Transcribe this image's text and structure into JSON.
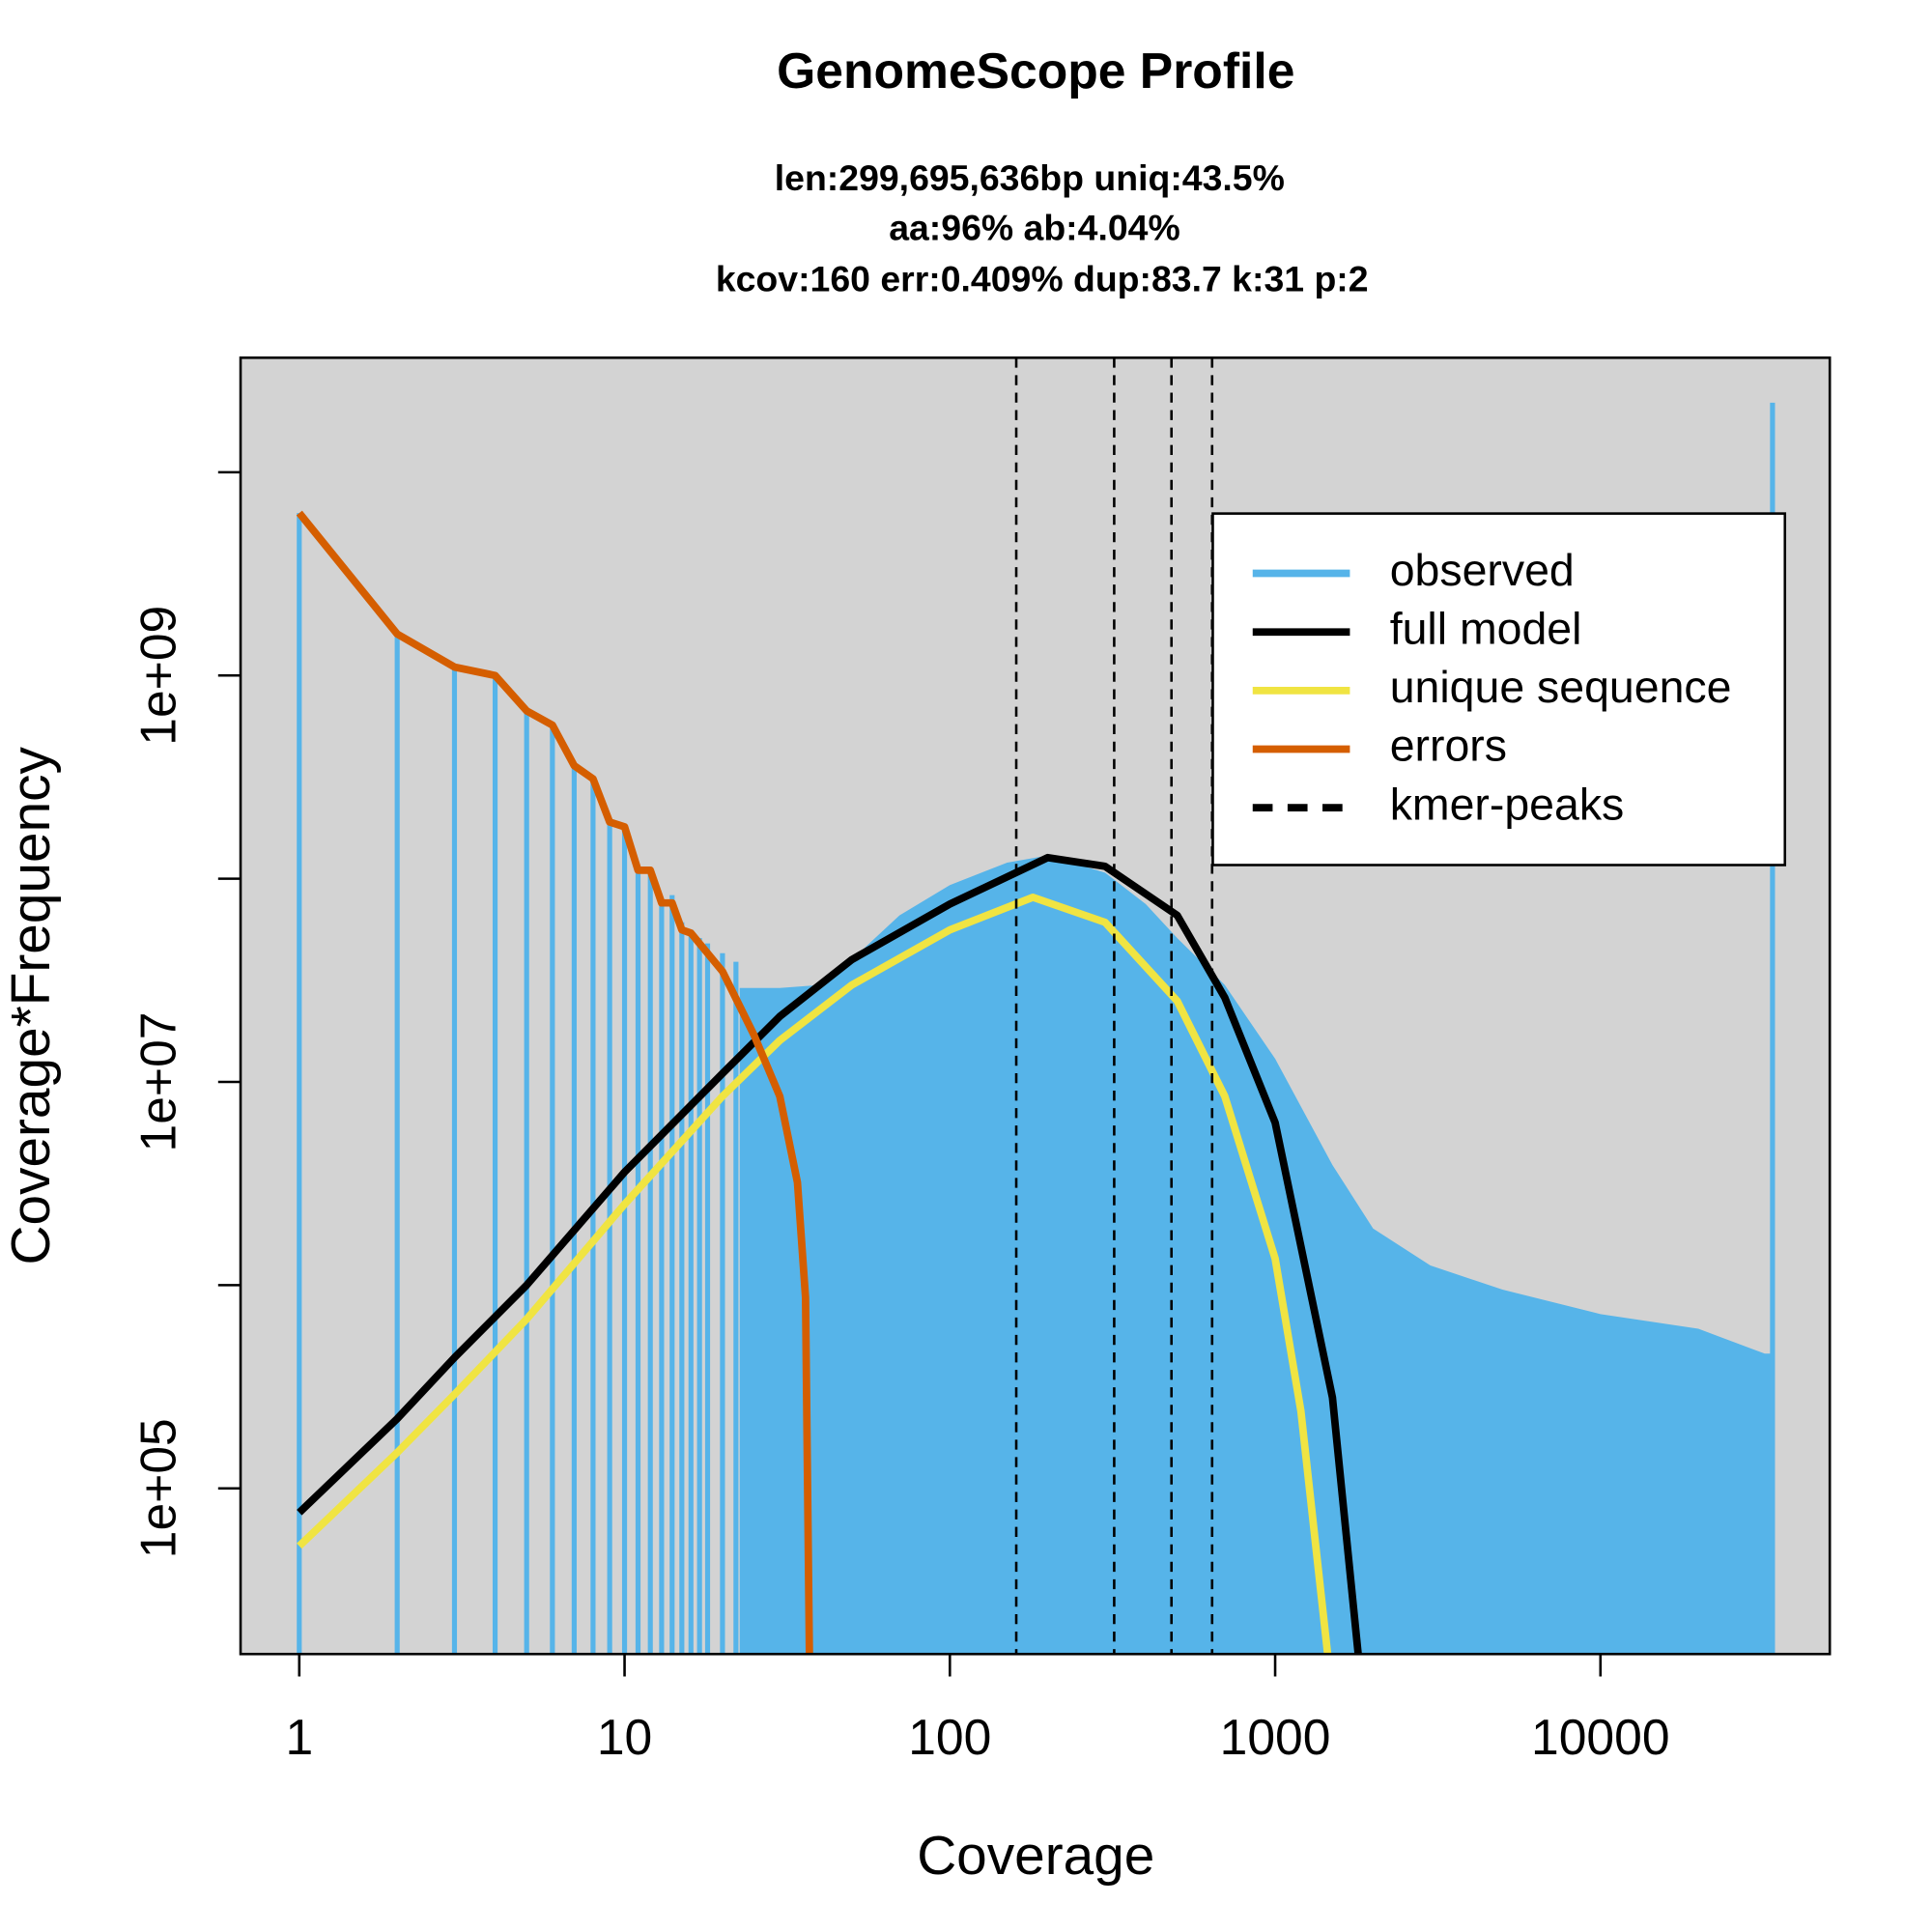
{
  "chart_data": {
    "type": "genomescope",
    "title": "GenomeScope Profile",
    "subtitle": [
      "len:299,695,636bp uniq:43.5%",
      "aa:96% ab:4.04%",
      "kcov:160 err:0.409%  dup:83.7  k:31 p:2"
    ],
    "x_label": "Coverage",
    "y_label": "Coverage*Frequency",
    "log_x": true,
    "log_y": true,
    "xlim": [
      0.66,
      50700
    ],
    "ylim": [
      15300,
      36600000000
    ],
    "xticks": [
      1,
      10,
      100,
      1000,
      10000
    ],
    "yticks": [
      {
        "value": 100000,
        "label": "1e+05"
      },
      {
        "value": 10000000,
        "label": "1e+07"
      },
      {
        "value": 1000000000,
        "label": "1e+09"
      }
    ],
    "yticks_unlabeled": [
      1000000,
      100000000,
      10000000000
    ],
    "background": "#d3d3d3",
    "legend": "top-right",
    "series": [
      {
        "name": "observed",
        "color": "#56B4E9",
        "style": "bars",
        "x": [
          1,
          2,
          3,
          4,
          5,
          6,
          7,
          8,
          9,
          10,
          11,
          12,
          13,
          14,
          15,
          16,
          17,
          18,
          20,
          22,
          30,
          40,
          50,
          70,
          100,
          150,
          200,
          300,
          400,
          500,
          700,
          1000,
          1500,
          2000,
          3000,
          5000,
          10000,
          20000,
          32000,
          33800
        ],
        "values": [
          6300000000,
          1600000000,
          1100000000,
          1000000000,
          670000000,
          570000000,
          360000000,
          310000000,
          190000000,
          180000000,
          110000000,
          110000000,
          76000000,
          83000000,
          61000000,
          56000000,
          51000000,
          48000000,
          43000000,
          39000000,
          29000000,
          30000000,
          40000000,
          66000000,
          93000000,
          120000000,
          130000000,
          107000000,
          75000000,
          51000000,
          30000000,
          13000000,
          3900000,
          1900000,
          1250000,
          950000,
          720000,
          610000,
          460000,
          22000000000
        ]
      },
      {
        "name": "full model",
        "color": "#000000",
        "style": "line",
        "x": [
          1,
          2,
          3,
          5,
          10,
          20,
          30,
          50,
          100,
          200,
          300,
          500,
          700,
          1000,
          1500,
          1800
        ],
        "values": [
          76000,
          220000,
          440000,
          1000000,
          3600000,
          11000000,
          21000000,
          40000000,
          75000000,
          127000000,
          115000000,
          66000000,
          26000000,
          6300000,
          280000,
          15300
        ]
      },
      {
        "name": "unique sequence",
        "color": "#F0E442",
        "style": "line",
        "x": [
          1,
          2,
          3,
          5,
          10,
          20,
          30,
          50,
          100,
          180,
          300,
          500,
          700,
          1000,
          1200,
          1450
        ],
        "values": [
          52000,
          150000,
          290000,
          680000,
          2500000,
          8500000,
          16000000,
          30000000,
          56000000,
          81000000,
          61000000,
          25000000,
          8500000,
          1350000,
          240000,
          15300
        ]
      },
      {
        "name": "errors",
        "color": "#D55E00",
        "style": "line",
        "x": [
          1,
          2,
          3,
          4,
          5,
          6,
          7,
          8,
          9,
          10,
          11,
          12,
          13,
          14,
          15,
          16,
          20,
          25,
          30,
          34,
          36,
          37
        ],
        "values": [
          6300000000,
          1600000000,
          1100000000,
          1000000000,
          670000000,
          570000000,
          360000000,
          310000000,
          190000000,
          180000000,
          110000000,
          110000000,
          76000000,
          76000000,
          56000000,
          54000000,
          35000000,
          17000000,
          8500000,
          3200000,
          870000,
          15300
        ]
      }
    ],
    "kmer_peaks": {
      "name": "kmer-peaks",
      "color": "#000000",
      "x": [
        160,
        320,
        480,
        640
      ]
    }
  }
}
